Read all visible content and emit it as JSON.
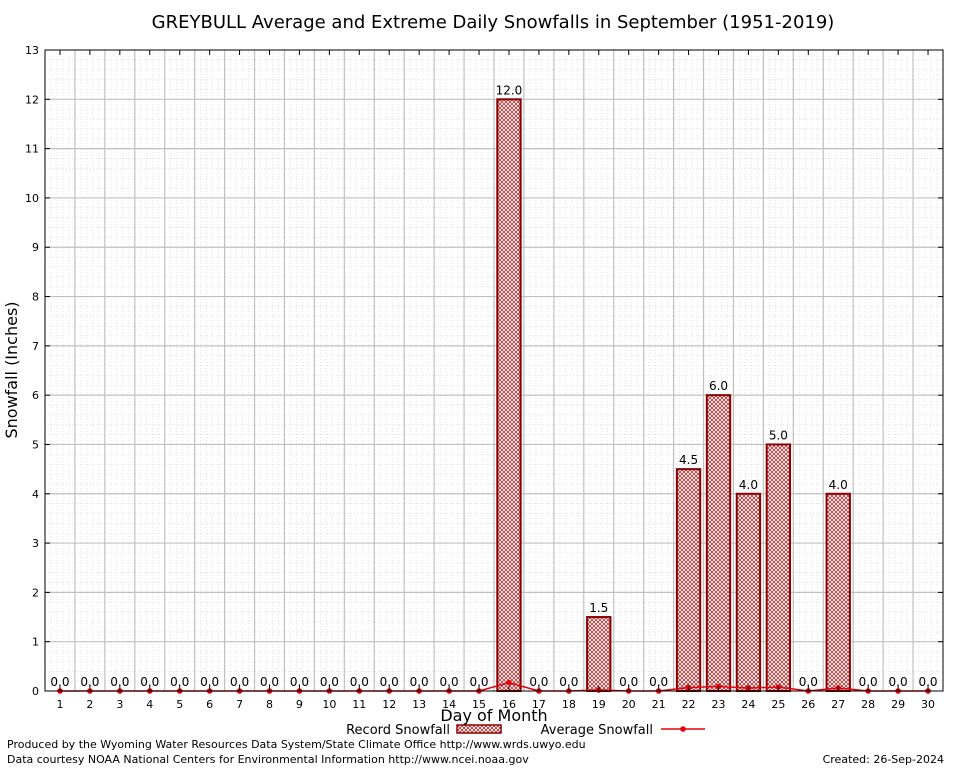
{
  "chart_data": {
    "type": "bar",
    "title": "GREYBULL Average and Extreme Daily Snowfalls in September (1951-2019)",
    "xlabel": "Day of Month",
    "ylabel": "Snowfall (Inches)",
    "ylim": [
      0,
      13
    ],
    "yticks": [
      "0",
      "1",
      "2",
      "3",
      "4",
      "5",
      "6",
      "7",
      "8",
      "9",
      "10",
      "11",
      "12",
      "13"
    ],
    "categories": [
      "1",
      "2",
      "3",
      "4",
      "5",
      "6",
      "7",
      "8",
      "9",
      "10",
      "11",
      "12",
      "13",
      "14",
      "15",
      "16",
      "17",
      "18",
      "19",
      "20",
      "21",
      "22",
      "23",
      "24",
      "25",
      "26",
      "27",
      "28",
      "29",
      "30"
    ],
    "series": [
      {
        "name": "Record Snowfall",
        "kind": "bar",
        "values": [
          0,
          0,
          0,
          0,
          0,
          0,
          0,
          0,
          0,
          0,
          0,
          0,
          0,
          0,
          0,
          12.0,
          0,
          0,
          1.5,
          0,
          0,
          4.5,
          6.0,
          4.0,
          5.0,
          0,
          4.0,
          0,
          0,
          0
        ],
        "labels": [
          "0.0",
          "0.0",
          "0.0",
          "0.0",
          "0.0",
          "0.0",
          "0.0",
          "0.0",
          "0.0",
          "0.0",
          "0.0",
          "0.0",
          "0.0",
          "0.0",
          "0.0",
          "12.0",
          "0.0",
          "0.0",
          "1.5",
          "0.0",
          "0.0",
          "4.5",
          "6.0",
          "4.0",
          "5.0",
          "0.0",
          "4.0",
          "0.0",
          "0.0",
          "0.0"
        ]
      },
      {
        "name": "Average Snowfall",
        "kind": "line",
        "values": [
          0,
          0,
          0,
          0,
          0,
          0,
          0,
          0,
          0,
          0,
          0,
          0,
          0,
          0,
          0,
          0.17,
          0,
          0,
          0.02,
          0,
          0,
          0.07,
          0.09,
          0.06,
          0.08,
          0,
          0.06,
          0,
          0,
          0
        ]
      }
    ],
    "grid": true,
    "legend_position": "bottom",
    "colors": {
      "bar_edge": "#8b0000",
      "bar_fill": "#c89a9a",
      "line": "#e8000b",
      "grid_major": "#c0c0c0",
      "grid_minor": "#d8d8d8"
    }
  },
  "footer": {
    "credit_line1": "Produced by the Wyoming Water Resources Data System/State Climate Office http://www.wrds.uwyo.edu",
    "credit_line2": "Data courtesy NOAA National Centers for Environmental Information http://www.ncei.noaa.gov",
    "created": "Created:  26-Sep-2024"
  }
}
